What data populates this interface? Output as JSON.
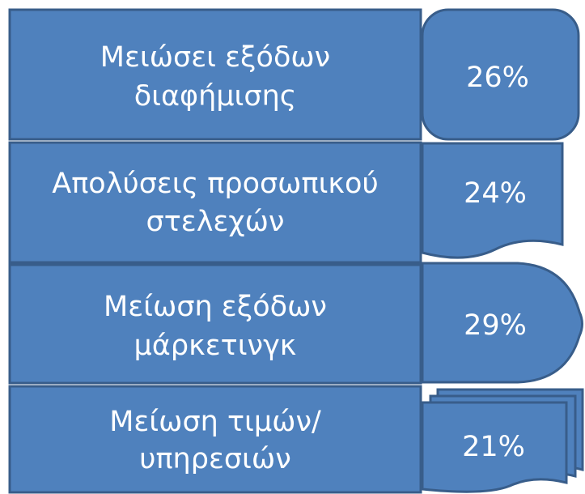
{
  "rows": [
    {
      "label": [
        "Μειώσει εξόδων",
        "διαφήμισης"
      ],
      "value": "26%"
    },
    {
      "label": [
        "Απολύσεις προσωπικού",
        "στελεχών"
      ],
      "value": "24%"
    },
    {
      "label": [
        "Μείωση εξόδων",
        "μάρκετινγκ"
      ],
      "value": "29%"
    },
    {
      "label": [
        "Μείωση τιμών/",
        "υπηρεσιών"
      ],
      "value": "21%"
    }
  ]
}
